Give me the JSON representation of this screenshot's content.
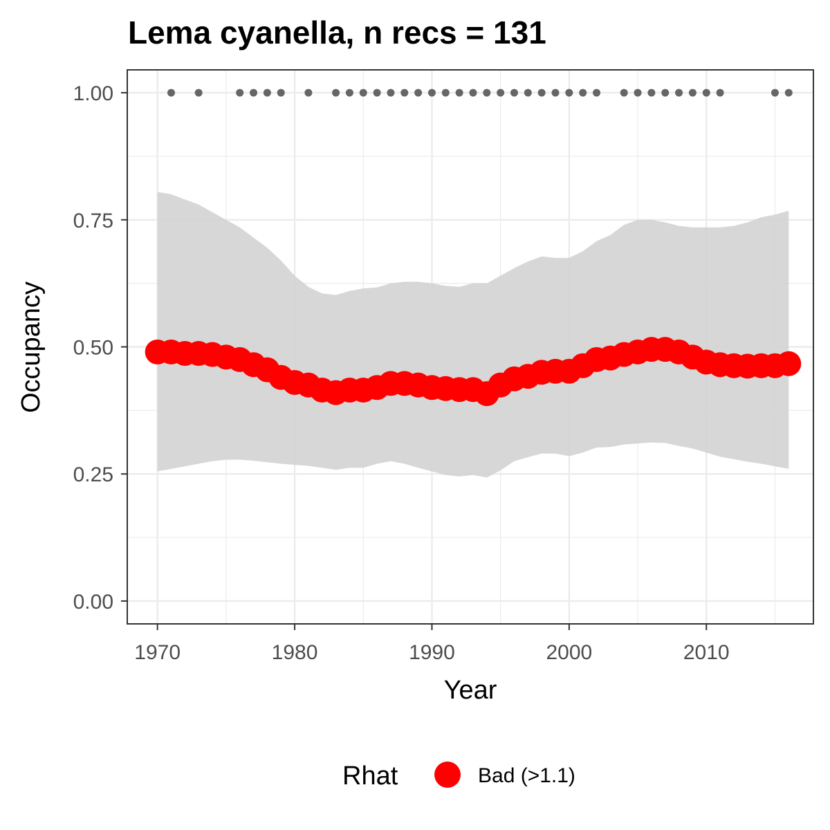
{
  "chart_data": {
    "type": "line",
    "title": "Lema cyanella, n recs = 131",
    "xlabel": "Year",
    "ylabel": "Occupancy",
    "xlim": [
      1967.8,
      2017.8
    ],
    "ylim": [
      -0.045,
      1.045
    ],
    "x_ticks": [
      1970,
      1980,
      1990,
      2000,
      2010
    ],
    "x_tick_labels": [
      "1970",
      "1980",
      "1990",
      "2000",
      "2010"
    ],
    "y_ticks": [
      0,
      0.25,
      0.5,
      0.75,
      1.0
    ],
    "y_tick_labels": [
      "0.00",
      "0.25",
      "0.50",
      "0.75",
      "1.00"
    ],
    "grid": true,
    "x": [
      1970,
      1971,
      1972,
      1973,
      1974,
      1975,
      1976,
      1977,
      1978,
      1979,
      1980,
      1981,
      1982,
      1983,
      1984,
      1985,
      1986,
      1987,
      1988,
      1989,
      1990,
      1991,
      1992,
      1993,
      1994,
      1995,
      1996,
      1997,
      1998,
      1999,
      2000,
      2001,
      2002,
      2003,
      2004,
      2005,
      2006,
      2007,
      2008,
      2009,
      2010,
      2011,
      2012,
      2013,
      2014,
      2015,
      2016
    ],
    "series": [
      {
        "name": "Bad (>1.1)",
        "color": "#ff0000",
        "values": [
          0.49,
          0.49,
          0.487,
          0.487,
          0.485,
          0.48,
          0.475,
          0.465,
          0.455,
          0.44,
          0.43,
          0.425,
          0.415,
          0.41,
          0.415,
          0.415,
          0.42,
          0.428,
          0.428,
          0.425,
          0.42,
          0.418,
          0.416,
          0.416,
          0.408,
          0.425,
          0.437,
          0.442,
          0.45,
          0.452,
          0.452,
          0.463,
          0.475,
          0.478,
          0.485,
          0.49,
          0.495,
          0.495,
          0.49,
          0.48,
          0.47,
          0.465,
          0.463,
          0.462,
          0.463,
          0.463,
          0.467
        ]
      }
    ],
    "ci_lower": [
      0.255,
      0.26,
      0.265,
      0.27,
      0.275,
      0.278,
      0.278,
      0.276,
      0.273,
      0.27,
      0.268,
      0.266,
      0.262,
      0.258,
      0.262,
      0.262,
      0.27,
      0.275,
      0.27,
      0.262,
      0.255,
      0.248,
      0.245,
      0.248,
      0.243,
      0.257,
      0.275,
      0.283,
      0.29,
      0.29,
      0.285,
      0.292,
      0.302,
      0.303,
      0.308,
      0.31,
      0.312,
      0.311,
      0.305,
      0.3,
      0.292,
      0.284,
      0.279,
      0.274,
      0.27,
      0.265,
      0.26
    ],
    "ci_upper": [
      0.805,
      0.8,
      0.79,
      0.78,
      0.765,
      0.75,
      0.735,
      0.715,
      0.695,
      0.67,
      0.64,
      0.618,
      0.605,
      0.602,
      0.61,
      0.615,
      0.617,
      0.625,
      0.628,
      0.628,
      0.625,
      0.62,
      0.618,
      0.625,
      0.625,
      0.64,
      0.655,
      0.668,
      0.678,
      0.675,
      0.675,
      0.688,
      0.708,
      0.72,
      0.74,
      0.75,
      0.75,
      0.745,
      0.738,
      0.735,
      0.735,
      0.735,
      0.738,
      0.745,
      0.755,
      0.76,
      0.768
    ],
    "records_years": [
      1971,
      1973,
      1976,
      1977,
      1978,
      1979,
      1981,
      1983,
      1984,
      1985,
      1986,
      1987,
      1988,
      1989,
      1990,
      1991,
      1992,
      1993,
      1994,
      1995,
      1996,
      1997,
      1998,
      1999,
      2000,
      2001,
      2002,
      2004,
      2005,
      2006,
      2007,
      2008,
      2009,
      2010,
      2011,
      2015,
      2016
    ],
    "records_value": 1.0,
    "records_color": "#666666",
    "ribbon_color": "#d3d3d3",
    "legend": {
      "title": "Rhat",
      "position": "bottom",
      "entries": [
        {
          "label": "Bad (>1.1)",
          "color": "#ff0000"
        }
      ]
    }
  }
}
